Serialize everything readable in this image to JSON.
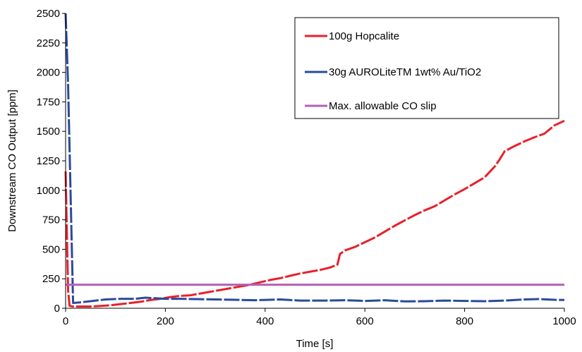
{
  "chart_data": {
    "type": "line",
    "xlabel": "Time [s]",
    "ylabel": "Downstream CO Output [ppm]",
    "xlim": [
      0,
      1000
    ],
    "ylim": [
      0,
      2500
    ],
    "xticks": [
      0,
      200,
      400,
      600,
      800,
      1000
    ],
    "yticks": [
      0,
      250,
      500,
      750,
      1000,
      1250,
      1500,
      1750,
      2000,
      2250,
      2500
    ],
    "grid": false,
    "legend_position": "top-right",
    "series": [
      {
        "name": "100g Hopcalite",
        "color": "#e8202a",
        "style": "dashed",
        "x": [
          0,
          5,
          8,
          15,
          30,
          50,
          70,
          90,
          110,
          130,
          150,
          170,
          190,
          210,
          230,
          250,
          270,
          290,
          310,
          330,
          350,
          370,
          390,
          410,
          430,
          450,
          470,
          490,
          510,
          530,
          545,
          550,
          560,
          580,
          600,
          620,
          640,
          660,
          680,
          700,
          720,
          740,
          760,
          780,
          800,
          820,
          840,
          860,
          870,
          880,
          900,
          920,
          940,
          960,
          980,
          1000
        ],
        "y": [
          1160,
          150,
          20,
          15,
          15,
          15,
          20,
          25,
          35,
          45,
          55,
          70,
          80,
          95,
          105,
          110,
          125,
          140,
          155,
          170,
          185,
          200,
          220,
          240,
          255,
          275,
          295,
          310,
          325,
          345,
          370,
          460,
          490,
          520,
          560,
          600,
          650,
          700,
          745,
          790,
          830,
          865,
          915,
          965,
          1010,
          1060,
          1110,
          1200,
          1260,
          1330,
          1375,
          1415,
          1450,
          1480,
          1550,
          1590
        ]
      },
      {
        "name": "30g AUROLiteTM 1wt% Au/TiO2",
        "color": "#2a4a9c",
        "style": "dashed",
        "x": [
          0,
          5,
          15,
          30,
          50,
          80,
          110,
          140,
          160,
          180,
          200,
          230,
          260,
          300,
          340,
          380,
          430,
          470,
          520,
          560,
          600,
          640,
          680,
          720,
          760,
          800,
          840,
          880,
          920,
          950,
          980,
          1000
        ],
        "y": [
          2500,
          1900,
          45,
          50,
          60,
          75,
          80,
          80,
          90,
          85,
          80,
          80,
          78,
          75,
          72,
          68,
          75,
          65,
          65,
          68,
          62,
          68,
          58,
          60,
          65,
          62,
          60,
          65,
          75,
          78,
          72,
          70
        ]
      },
      {
        "name": "Max. allowable CO slip",
        "color": "#b55fb5",
        "style": "solid",
        "x": [
          0,
          1000
        ],
        "y": [
          200,
          200
        ]
      }
    ]
  }
}
